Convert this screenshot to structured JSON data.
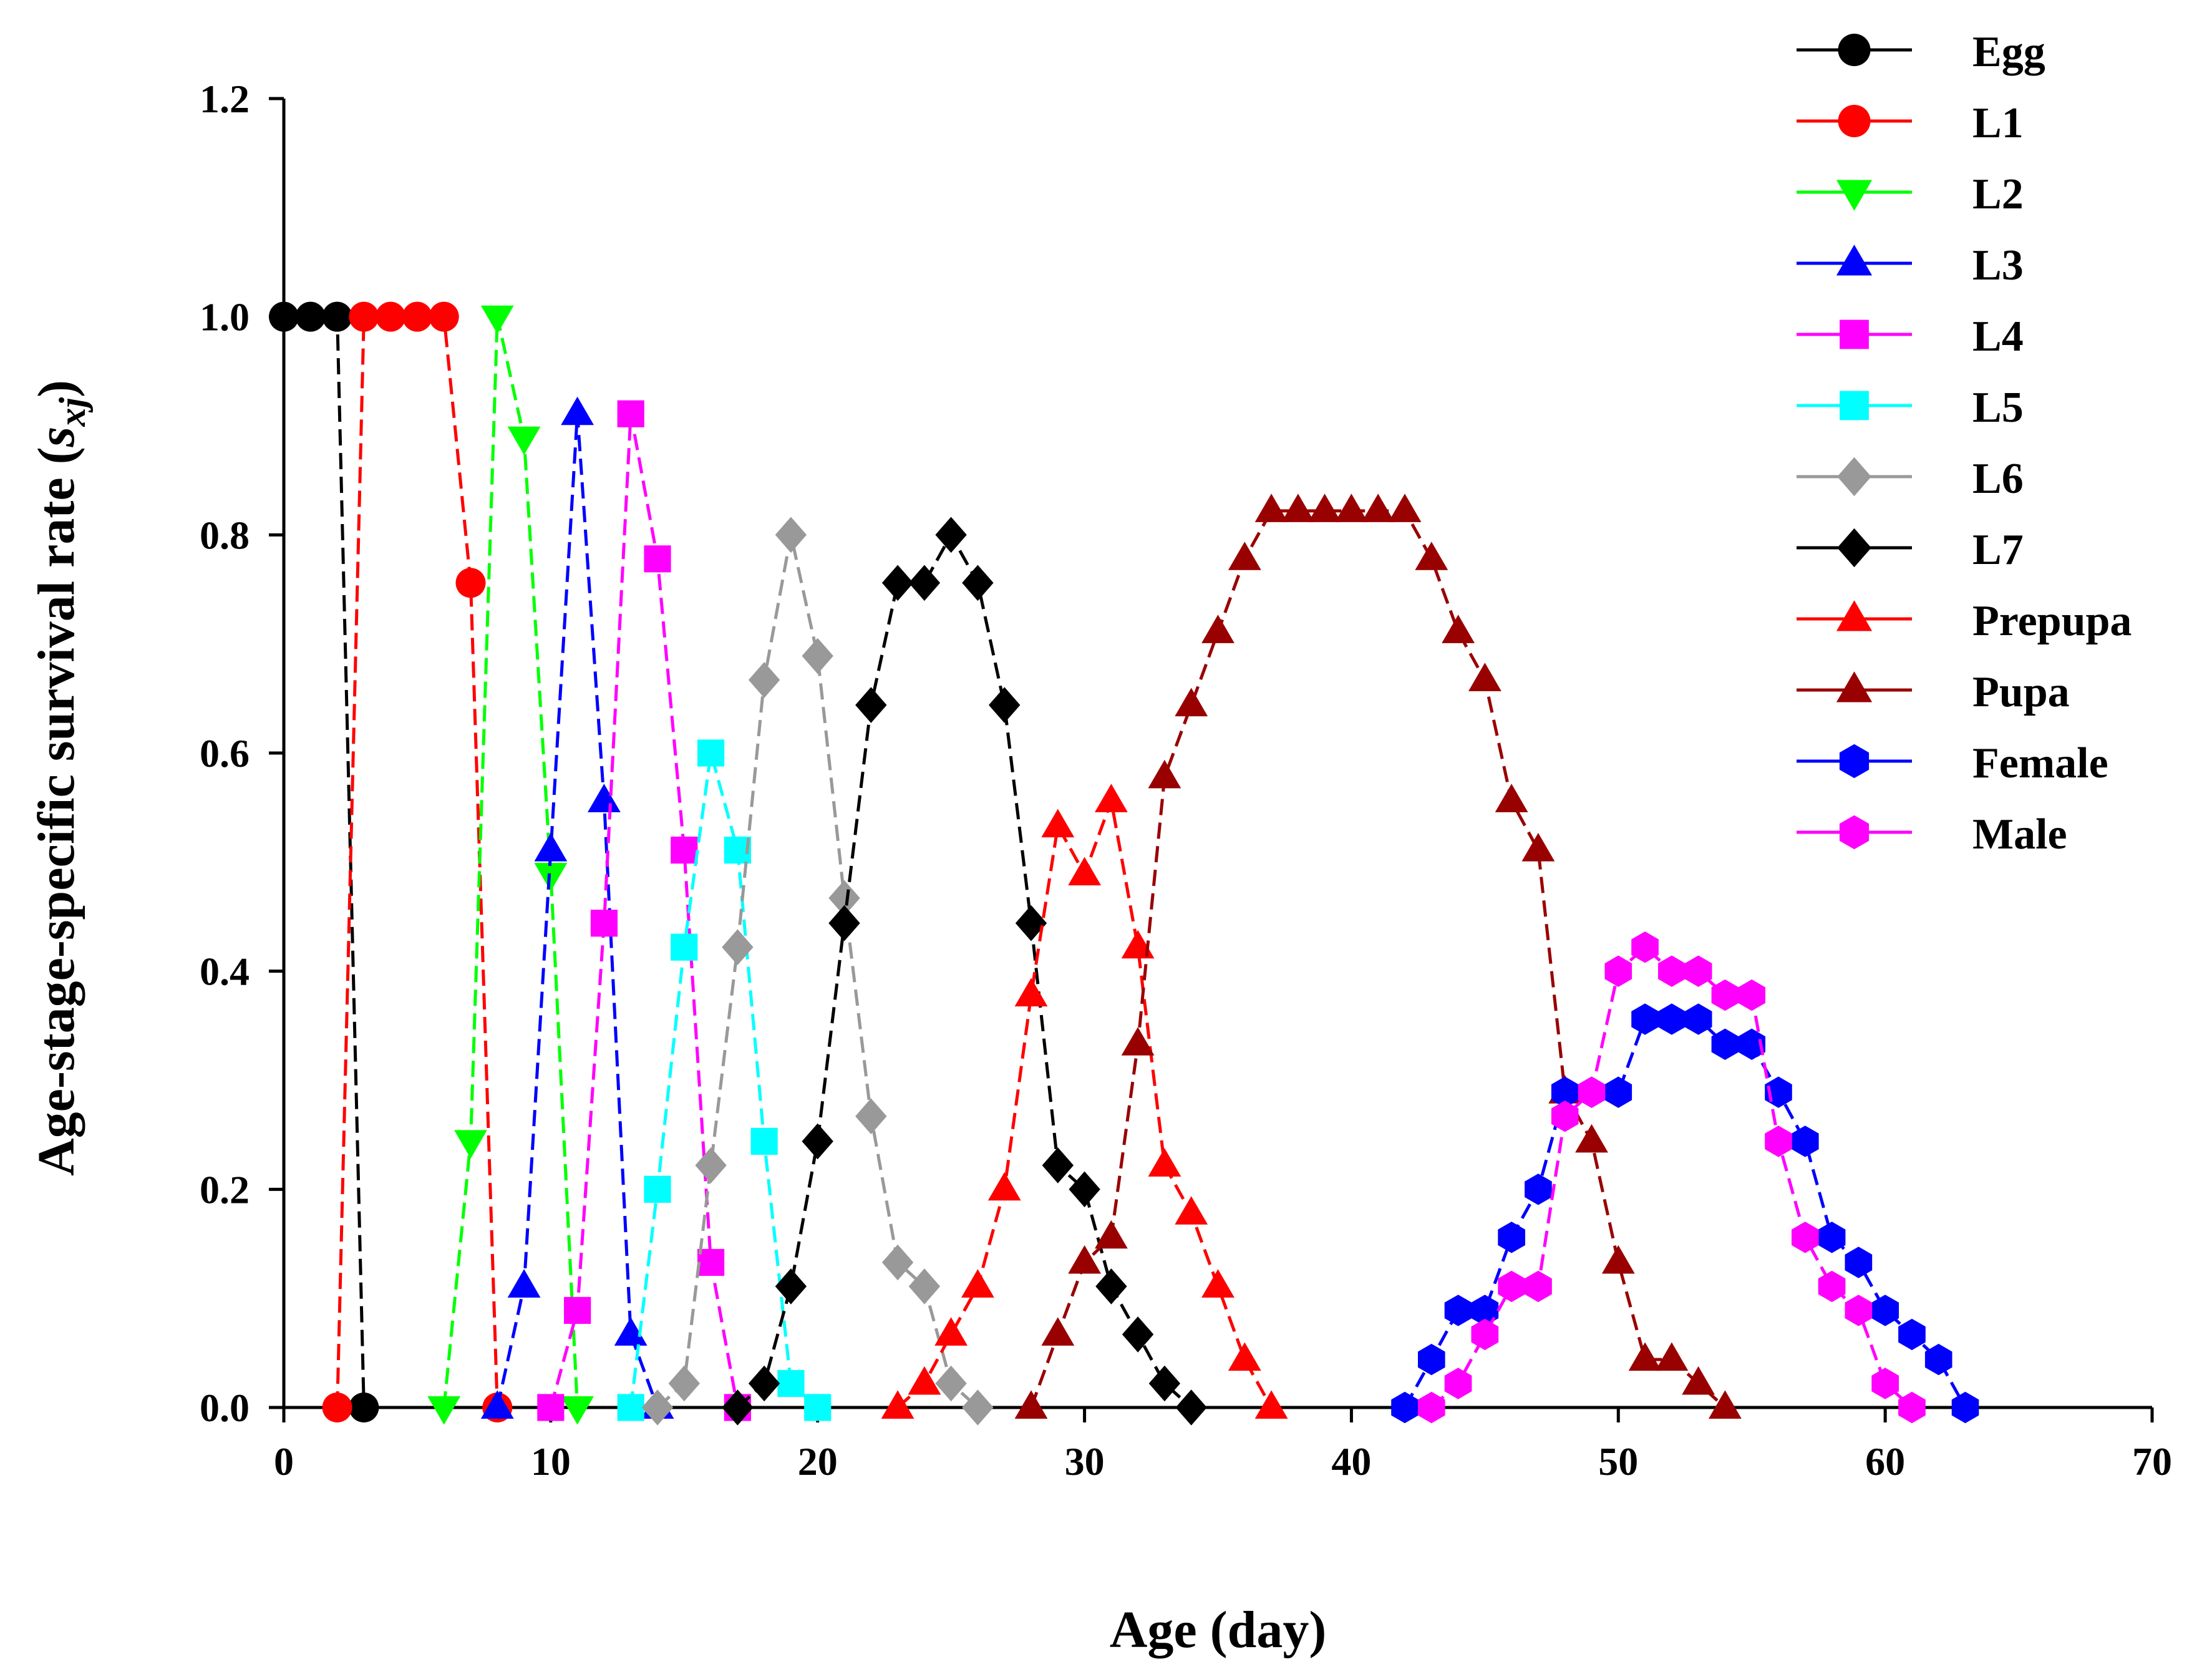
{
  "chart_data": {
    "type": "line",
    "title": "",
    "xlabel": "Age (day)",
    "ylabel_prefix": "Age-stage-specific survival rate (",
    "ylabel_symbol": "s",
    "ylabel_subscript": "xj",
    "ylabel_suffix": ")",
    "xlim": [
      0,
      70
    ],
    "ylim": [
      0,
      1.2
    ],
    "xticks": [
      0,
      10,
      20,
      30,
      40,
      50,
      60,
      70
    ],
    "xtick_labels": [
      "0",
      "10",
      "20",
      "30",
      "40",
      "50",
      "60",
      "70"
    ],
    "yticks": [
      0,
      0.2,
      0.4,
      0.6,
      0.8,
      1.0,
      1.2
    ],
    "ytick_labels": [
      "0.0",
      "0.2",
      "0.4",
      "0.6",
      "0.8",
      "1.0",
      "1.2"
    ],
    "legend_position": "top-right",
    "series": [
      {
        "name": "Egg",
        "color": "#000000",
        "marker": "circle",
        "points": [
          [
            0,
            1.0
          ],
          [
            1,
            1.0
          ],
          [
            2,
            1.0
          ],
          [
            3,
            0.0
          ]
        ]
      },
      {
        "name": "L1",
        "color": "#ff0000",
        "marker": "circle",
        "points": [
          [
            2,
            0.0
          ],
          [
            3,
            1.0
          ],
          [
            4,
            1.0
          ],
          [
            5,
            1.0
          ],
          [
            6,
            1.0
          ],
          [
            7,
            0.756
          ],
          [
            8,
            0.0
          ]
        ]
      },
      {
        "name": "L2",
        "color": "#00ff00",
        "marker": "triangle-down",
        "points": [
          [
            6,
            0.0
          ],
          [
            7,
            0.244
          ],
          [
            8,
            1.0
          ],
          [
            9,
            0.889
          ],
          [
            10,
            0.489
          ],
          [
            11,
            0.0
          ]
        ]
      },
      {
        "name": "L3",
        "color": "#0000ff",
        "marker": "triangle-up",
        "points": [
          [
            8,
            0.0
          ],
          [
            9,
            0.111
          ],
          [
            10,
            0.511
          ],
          [
            11,
            0.911
          ],
          [
            12,
            0.556
          ],
          [
            13,
            0.067
          ],
          [
            14,
            0.0
          ]
        ]
      },
      {
        "name": "L4",
        "color": "#ff00ff",
        "marker": "square",
        "points": [
          [
            10,
            0.0
          ],
          [
            11,
            0.089
          ],
          [
            12,
            0.444
          ],
          [
            13,
            0.911
          ],
          [
            14,
            0.778
          ],
          [
            15,
            0.511
          ],
          [
            16,
            0.133
          ],
          [
            17,
            0.0
          ]
        ]
      },
      {
        "name": "L5",
        "color": "#00ffff",
        "marker": "square",
        "points": [
          [
            13,
            0.0
          ],
          [
            14,
            0.2
          ],
          [
            15,
            0.422
          ],
          [
            16,
            0.6
          ],
          [
            17,
            0.511
          ],
          [
            18,
            0.244
          ],
          [
            19,
            0.022
          ],
          [
            20,
            0.0
          ]
        ]
      },
      {
        "name": "L6",
        "color": "#999999",
        "marker": "diamond",
        "points": [
          [
            14,
            0.0
          ],
          [
            15,
            0.022
          ],
          [
            16,
            0.222
          ],
          [
            17,
            0.422
          ],
          [
            18,
            0.667
          ],
          [
            19,
            0.8
          ],
          [
            20,
            0.689
          ],
          [
            21,
            0.467
          ],
          [
            22,
            0.267
          ],
          [
            23,
            0.133
          ],
          [
            24,
            0.111
          ],
          [
            25,
            0.022
          ],
          [
            26,
            0.0
          ]
        ]
      },
      {
        "name": "L7",
        "color": "#000000",
        "marker": "diamond",
        "points": [
          [
            17,
            0.0
          ],
          [
            18,
            0.022
          ],
          [
            19,
            0.111
          ],
          [
            20,
            0.244
          ],
          [
            21,
            0.444
          ],
          [
            22,
            0.644
          ],
          [
            23,
            0.756
          ],
          [
            24,
            0.756
          ],
          [
            25,
            0.8
          ],
          [
            26,
            0.756
          ],
          [
            27,
            0.644
          ],
          [
            28,
            0.444
          ],
          [
            29,
            0.222
          ],
          [
            30,
            0.2
          ],
          [
            31,
            0.111
          ],
          [
            32,
            0.067
          ],
          [
            33,
            0.022
          ],
          [
            34,
            0.0
          ]
        ]
      },
      {
        "name": "Prepupa",
        "color": "#ff0000",
        "marker": "triangle-up",
        "points": [
          [
            23,
            0.0
          ],
          [
            24,
            0.022
          ],
          [
            25,
            0.067
          ],
          [
            26,
            0.111
          ],
          [
            27,
            0.2
          ],
          [
            28,
            0.378
          ],
          [
            29,
            0.533
          ],
          [
            30,
            0.489
          ],
          [
            31,
            0.556
          ],
          [
            32,
            0.422
          ],
          [
            33,
            0.222
          ],
          [
            34,
            0.178
          ],
          [
            35,
            0.111
          ],
          [
            36,
            0.044
          ],
          [
            37,
            0.0
          ]
        ]
      },
      {
        "name": "Pupa",
        "color": "#990000",
        "marker": "triangle-up",
        "points": [
          [
            28,
            0.0
          ],
          [
            29,
            0.067
          ],
          [
            30,
            0.133
          ],
          [
            31,
            0.156
          ],
          [
            32,
            0.333
          ],
          [
            33,
            0.578
          ],
          [
            34,
            0.644
          ],
          [
            35,
            0.711
          ],
          [
            36,
            0.778
          ],
          [
            37,
            0.822
          ],
          [
            38,
            0.822
          ],
          [
            39,
            0.822
          ],
          [
            40,
            0.822
          ],
          [
            41,
            0.822
          ],
          [
            42,
            0.822
          ],
          [
            43,
            0.778
          ],
          [
            44,
            0.711
          ],
          [
            45,
            0.667
          ],
          [
            46,
            0.556
          ],
          [
            47,
            0.511
          ],
          [
            48,
            0.289
          ],
          [
            49,
            0.244
          ],
          [
            50,
            0.133
          ],
          [
            51,
            0.044
          ],
          [
            52,
            0.044
          ],
          [
            53,
            0.022
          ],
          [
            54,
            0.0
          ]
        ]
      },
      {
        "name": "Female",
        "color": "#0000ff",
        "marker": "hexagon",
        "points": [
          [
            42,
            0.0
          ],
          [
            43,
            0.044
          ],
          [
            44,
            0.089
          ],
          [
            45,
            0.089
          ],
          [
            46,
            0.156
          ],
          [
            47,
            0.2
          ],
          [
            48,
            0.289
          ],
          [
            49,
            0.289
          ],
          [
            50,
            0.289
          ],
          [
            51,
            0.356
          ],
          [
            52,
            0.356
          ],
          [
            53,
            0.356
          ],
          [
            54,
            0.333
          ],
          [
            55,
            0.333
          ],
          [
            56,
            0.289
          ],
          [
            57,
            0.244
          ],
          [
            58,
            0.156
          ],
          [
            59,
            0.133
          ],
          [
            60,
            0.089
          ],
          [
            61,
            0.067
          ],
          [
            62,
            0.044
          ],
          [
            63,
            0.0
          ]
        ]
      },
      {
        "name": "Male",
        "color": "#ff00ff",
        "marker": "hexagon",
        "points": [
          [
            43,
            0.0
          ],
          [
            44,
            0.022
          ],
          [
            45,
            0.067
          ],
          [
            46,
            0.111
          ],
          [
            47,
            0.111
          ],
          [
            48,
            0.267
          ],
          [
            49,
            0.289
          ],
          [
            50,
            0.4
          ],
          [
            51,
            0.422
          ],
          [
            52,
            0.4
          ],
          [
            53,
            0.4
          ],
          [
            54,
            0.378
          ],
          [
            55,
            0.378
          ],
          [
            56,
            0.244
          ],
          [
            57,
            0.156
          ],
          [
            58,
            0.111
          ],
          [
            59,
            0.089
          ],
          [
            60,
            0.022
          ],
          [
            61,
            0.0
          ]
        ]
      }
    ]
  }
}
